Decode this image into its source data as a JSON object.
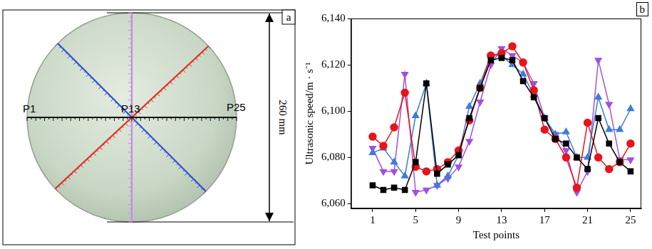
{
  "diagram": {
    "panel_label": "a",
    "points": [
      "P1",
      "P13",
      "P25"
    ],
    "dimension": "260 mm"
  },
  "chart_data": {
    "type": "line",
    "panel_label": "b",
    "x_label": "Test points",
    "y_label": "Ultrasonic speed/m · s⁻¹",
    "x": [
      1,
      2,
      3,
      4,
      5,
      6,
      7,
      8,
      9,
      10,
      11,
      12,
      13,
      14,
      15,
      16,
      17,
      18,
      19,
      20,
      21,
      22,
      23,
      24,
      25
    ],
    "xlim": [
      -1,
      26
    ],
    "xticks": [
      1,
      5,
      9,
      13,
      17,
      21,
      25
    ],
    "ylim": [
      6058,
      6140
    ],
    "yticks": [
      6060,
      6080,
      6100,
      6120,
      6140
    ],
    "grid": false,
    "series": [
      {
        "color": "#000000",
        "marker": "square",
        "values": [
          6068,
          6066,
          6067,
          6066,
          6078,
          6112,
          6073,
          6077,
          6081,
          6097,
          6110,
          6122,
          6123,
          6122,
          6113,
          6106,
          6097,
          6088,
          6086,
          6080,
          6075,
          6097,
          6086,
          6078,
          6074
        ]
      },
      {
        "color": "#e8141b",
        "marker": "circle",
        "values": [
          6089,
          6085,
          6093,
          6108,
          6076,
          6074,
          6075,
          6078,
          6083,
          6096,
          6110,
          6124,
          6125,
          6128,
          6121,
          6109,
          6092,
          6088,
          6080,
          6067,
          6095,
          6080,
          6075,
          6078,
          6086
        ]
      },
      {
        "color": "#3b7ddd",
        "marker": "triangle",
        "values": [
          6082,
          6084,
          6078,
          6072,
          6098,
          6112,
          6068,
          6072,
          6081,
          6102,
          6112,
          6124,
          6124,
          6120,
          6116,
          6107,
          6097,
          6090,
          6091,
          6080,
          6080,
          6106,
          6092,
          6092,
          6101
        ]
      },
      {
        "color": "#a050e0",
        "marker": "triangle-down",
        "values": [
          6084,
          6074,
          6074,
          6116,
          6065,
          6066,
          6068,
          6071,
          6076,
          6087,
          6104,
          6120,
          6127,
          6124,
          6121,
          6112,
          6097,
          6090,
          6083,
          6065,
          6074,
          6122,
          6103,
          6079,
          6079
        ]
      }
    ]
  }
}
